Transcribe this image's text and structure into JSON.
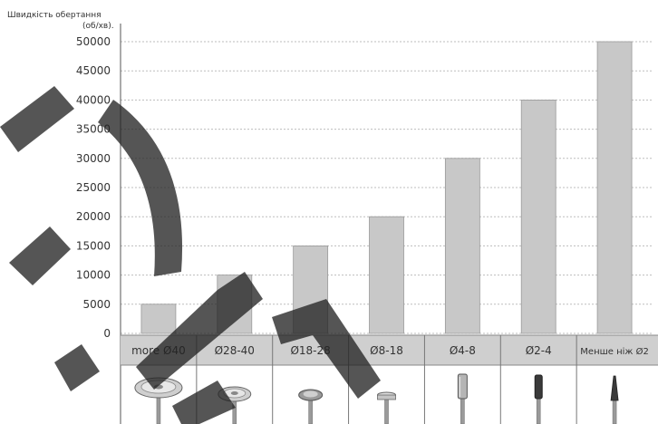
{
  "chart_data": {
    "type": "bar",
    "ylabel_line1": "Швидкість обертання",
    "ylabel_line2": "(об/хв).",
    "categories": [
      "more Ø40",
      "Ø28-40",
      "Ø18-28",
      "Ø8-18",
      "Ø4-8",
      "Ø2-4",
      "Менше ніж Ø2"
    ],
    "values": [
      5000,
      10000,
      15000,
      20000,
      30000,
      40000,
      50000
    ],
    "yticks": [
      0,
      5000,
      10000,
      15000,
      20000,
      25000,
      30000,
      35000,
      40000,
      45000,
      50000
    ],
    "ylim": [
      0,
      50000
    ],
    "grid": true,
    "tool_icons": [
      "large-disc-wheel-icon",
      "disc-wheel-icon",
      "small-disc-wheel-icon",
      "flat-wheel-icon",
      "cylinder-bur-icon",
      "diamond-bur-icon",
      "needle-bur-icon"
    ],
    "colors": {
      "bar": "#c8c8c8",
      "category_band": "#cfcfcf",
      "grid": "#bdbdbd",
      "watermark": "#222222"
    }
  }
}
